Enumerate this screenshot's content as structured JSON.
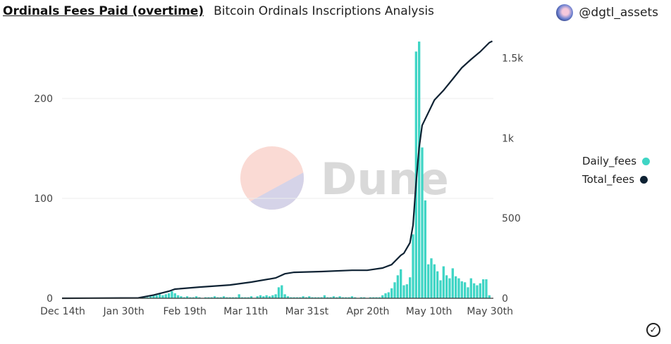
{
  "header": {
    "title": "Ordinals Fees Paid (overtime)",
    "subtitle": "Bitcoin Ordinals Inscriptions Analysis",
    "author": "@dgtl_assets"
  },
  "watermark": "Dune",
  "colors": {
    "daily": "#3fd5c5",
    "total": "#0e2233",
    "grid": "#ececec"
  },
  "chart_data": {
    "type": "bar+line",
    "title": "Ordinals Fees Paid (overtime)",
    "x_ticks": [
      {
        "i": 0,
        "label": "Dec 14th"
      },
      {
        "i": 20,
        "label": "Jan 30th"
      },
      {
        "i": 40,
        "label": "Feb 19th"
      },
      {
        "i": 60,
        "label": "Mar 11th"
      },
      {
        "i": 80,
        "label": "Mar 31st"
      },
      {
        "i": 100,
        "label": "Apr 20th"
      },
      {
        "i": 120,
        "label": "May 10th"
      },
      {
        "i": 140,
        "label": "May 30th"
      }
    ],
    "y_left": {
      "range": [
        0,
        260
      ],
      "ticks": [
        {
          "v": 0,
          "label": "0"
        },
        {
          "v": 100,
          "label": "100"
        },
        {
          "v": 200,
          "label": "200"
        }
      ]
    },
    "y_right": {
      "range": [
        0,
        1610
      ],
      "ticks": [
        {
          "v": 0,
          "label": "0"
        },
        {
          "v": 500,
          "label": "500"
        },
        {
          "v": 1000,
          "label": "1k"
        },
        {
          "v": 1500,
          "label": "1.5k"
        }
      ]
    },
    "legend": {
      "position": "right",
      "entries": [
        "Daily_fees",
        "Total_fees"
      ]
    },
    "series": [
      {
        "name": "Daily_fees",
        "type": "bar",
        "axis": "left",
        "values": [
          0,
          0,
          0,
          0,
          0,
          0,
          0,
          0,
          0,
          0,
          0,
          0,
          0,
          0,
          0,
          0,
          0,
          0,
          0,
          0,
          0,
          0,
          0,
          0,
          0,
          0,
          0,
          1,
          1,
          2,
          3,
          3,
          4,
          3,
          4,
          5,
          7,
          5,
          3,
          2,
          1,
          2,
          1,
          1,
          2,
          1,
          0,
          1,
          1,
          1,
          2,
          1,
          1,
          2,
          1,
          1,
          1,
          1,
          4,
          1,
          1,
          1,
          2,
          0,
          2,
          3,
          2,
          3,
          2,
          3,
          4,
          11,
          13,
          4,
          2,
          1,
          1,
          1,
          1,
          2,
          1,
          2,
          1,
          1,
          1,
          1,
          3,
          1,
          1,
          2,
          1,
          2,
          1,
          1,
          1,
          2,
          1,
          0,
          1,
          1,
          0,
          1,
          1,
          1,
          1,
          3,
          5,
          6,
          10,
          16,
          23,
          29,
          13,
          14,
          21,
          64,
          247,
          257,
          151,
          98,
          34,
          40,
          34,
          27,
          18,
          32,
          23,
          20,
          30,
          22,
          20,
          17,
          16,
          11,
          20,
          15,
          13,
          15,
          19,
          19,
          3
        ]
      },
      {
        "name": "Total_fees",
        "type": "line",
        "axis": "right",
        "points": [
          [
            0,
            0
          ],
          [
            25,
            2
          ],
          [
            30,
            20
          ],
          [
            35,
            44
          ],
          [
            37,
            57
          ],
          [
            45,
            70
          ],
          [
            55,
            83
          ],
          [
            62,
            101
          ],
          [
            70,
            127
          ],
          [
            73,
            153
          ],
          [
            76,
            162
          ],
          [
            85,
            167
          ],
          [
            95,
            175
          ],
          [
            100,
            175
          ],
          [
            105,
            189
          ],
          [
            108,
            210
          ],
          [
            111,
            268
          ],
          [
            112,
            281
          ],
          [
            114,
            346
          ],
          [
            115,
            456
          ],
          [
            116,
            719
          ],
          [
            117,
            939
          ],
          [
            118,
            1079
          ],
          [
            120,
            1158
          ],
          [
            122,
            1237
          ],
          [
            125,
            1298
          ],
          [
            128,
            1368
          ],
          [
            131,
            1439
          ],
          [
            134,
            1491
          ],
          [
            137,
            1539
          ],
          [
            140,
            1596
          ],
          [
            141,
            1605
          ]
        ]
      }
    ]
  }
}
